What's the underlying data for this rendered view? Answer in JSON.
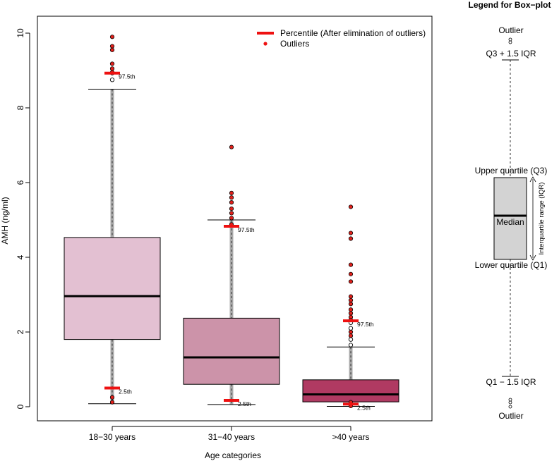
{
  "chart_data": {
    "type": "box",
    "xlabel": "Age categories",
    "ylabel": "AMH (ng/ml)",
    "ylim": [
      0,
      10
    ],
    "yticks": [
      0,
      2,
      4,
      6,
      8,
      10
    ],
    "categories": [
      "18−30 years",
      "31−40 years",
      ">40 years"
    ],
    "box_colors": [
      "#e3c0d2",
      "#cc93a9",
      "#b03a62"
    ],
    "outlier_color": "#e0201b",
    "percentile_color": "#ee1111",
    "boxes": [
      {
        "q1": 1.8,
        "median": 2.96,
        "q3": 4.53,
        "whisker_low": 0.08,
        "whisker_high": 8.5,
        "p2_5": 0.5,
        "p97_5": 8.93,
        "outliers_hollow": [
          8.75,
          8.93
        ],
        "outliers_red": [
          9.9,
          9.65,
          9.55,
          9.18,
          9.05,
          8.95,
          0.25,
          0.12
        ]
      },
      {
        "q1": 0.6,
        "median": 1.32,
        "q3": 2.37,
        "whisker_low": 0.06,
        "whisker_high": 5.0,
        "p2_5": 0.17,
        "p97_5": 4.83,
        "outliers_hollow": [],
        "outliers_red": [
          6.95,
          5.72,
          5.6,
          5.47,
          5.3,
          5.18,
          5.05,
          4.88
        ]
      },
      {
        "q1": 0.13,
        "median": 0.33,
        "q3": 0.72,
        "whisker_low": 0.01,
        "whisker_high": 1.6,
        "p2_5": 0.07,
        "p97_5": 2.3,
        "outliers_hollow": [
          1.65,
          1.8,
          2.1,
          2.25
        ],
        "outliers_red": [
          5.35,
          4.65,
          4.5,
          3.8,
          3.55,
          3.35,
          2.95,
          2.85,
          2.75,
          2.6,
          2.5,
          2.4,
          2.32,
          2.0,
          1.9,
          0.12,
          0.02
        ]
      }
    ],
    "percentile_labels": [
      "97.5th",
      "2.5th"
    ],
    "legend": [
      {
        "label": "Percentile (After elimination of outliers)",
        "kind": "line"
      },
      {
        "label": "Outliers",
        "kind": "point"
      }
    ]
  },
  "boxplot_legend": {
    "title": "Legend for Box−plot",
    "outlier_top": "Outlier",
    "upper_fence": "Q3 + 1.5 IQR",
    "upper_quartile": "Upper quartile (Q3)",
    "median": "Median",
    "iqr": "Interquartile range (IQR)",
    "lower_quartile": "Lower quartile (Q1)",
    "lower_fence": "Q1 − 1.5 IQR",
    "outlier_bottom": "Outlier",
    "box_color": "#d3d3d3"
  }
}
